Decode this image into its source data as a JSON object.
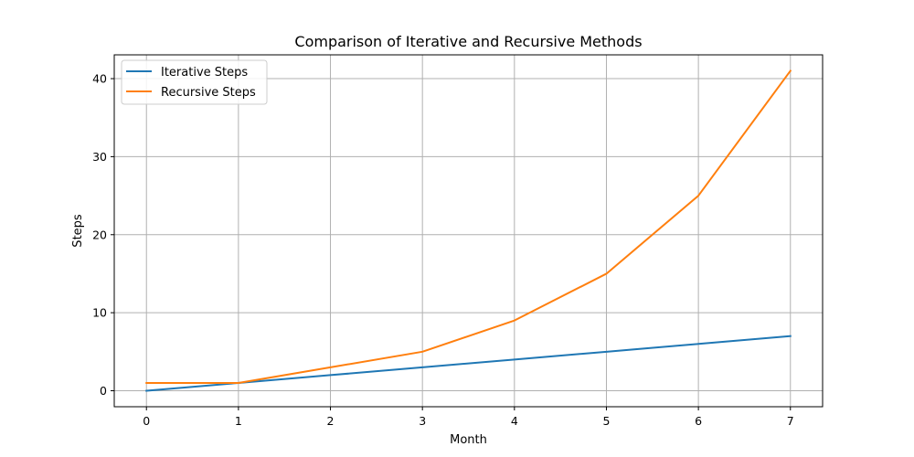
{
  "chart_data": {
    "type": "line",
    "title": "Comparison of Iterative and Recursive Methods",
    "xlabel": "Month",
    "ylabel": "Steps",
    "x": [
      0,
      1,
      2,
      3,
      4,
      5,
      6,
      7
    ],
    "xlim": [
      -0.35,
      7.35
    ],
    "ylim": [
      -2.05,
      43.05
    ],
    "xticks": [
      0,
      1,
      2,
      3,
      4,
      5,
      6,
      7
    ],
    "yticks": [
      0,
      10,
      20,
      30,
      40
    ],
    "grid": true,
    "legend_position": "upper-left",
    "series": [
      {
        "name": "Iterative Steps",
        "color": "#1f77b4",
        "values": [
          0,
          1,
          2,
          3,
          4,
          5,
          6,
          7
        ]
      },
      {
        "name": "Recursive Steps",
        "color": "#ff7f0e",
        "values": [
          1,
          1,
          3,
          5,
          9,
          15,
          25,
          41
        ]
      }
    ]
  }
}
